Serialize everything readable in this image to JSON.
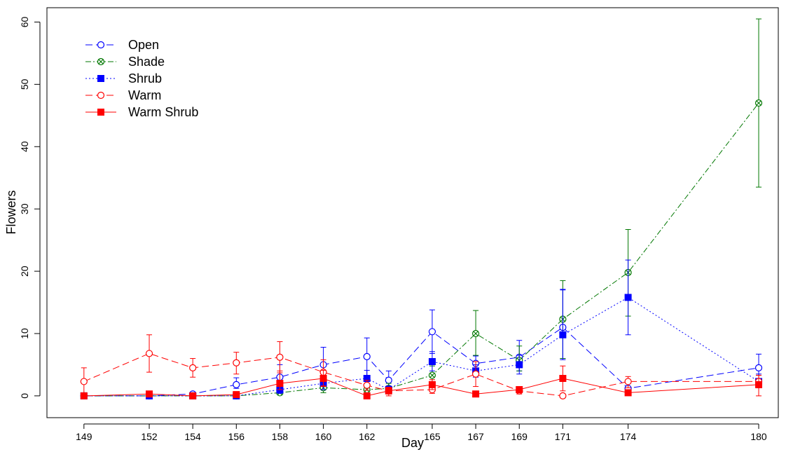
{
  "chart_data": {
    "type": "line",
    "xlabel": "Day",
    "ylabel": "Flowers",
    "x": [
      149,
      152,
      154,
      156,
      158,
      160,
      162,
      163,
      165,
      167,
      169,
      171,
      174,
      180
    ],
    "x_ticks": [
      149,
      152,
      154,
      156,
      158,
      160,
      162,
      165,
      167,
      169,
      171,
      174,
      180
    ],
    "y_ticks": [
      0,
      10,
      20,
      30,
      40,
      50,
      60
    ],
    "xlim": [
      147.3,
      180.9
    ],
    "ylim": [
      -3.5,
      62.3
    ],
    "grid": false,
    "legend_position": "top-left",
    "series": [
      {
        "name": "Open",
        "color": "#0000ff",
        "line_style": "dashed",
        "marker": "open-circle",
        "x": [
          149,
          152,
          154,
          156,
          158,
          160,
          162,
          163,
          165,
          167,
          169,
          171,
          174,
          180
        ],
        "values": [
          0,
          0,
          0.3,
          1.8,
          3.0,
          5.0,
          6.3,
          2.5,
          10.3,
          5.2,
          6.2,
          11.0,
          1.2,
          4.5
        ],
        "err_low": [
          0,
          0,
          0.3,
          0.6,
          1.5,
          2.8,
          3.0,
          1.3,
          3.5,
          1.2,
          2.2,
          5.0,
          0.6,
          2.0
        ],
        "err_high": [
          0,
          0,
          0.2,
          1.1,
          2.0,
          2.8,
          3.0,
          1.5,
          3.5,
          1.2,
          2.7,
          6.0,
          0.8,
          2.2
        ]
      },
      {
        "name": "Shade",
        "color": "#007700",
        "line_style": "dash-dot",
        "marker": "crossed-circle",
        "x": [
          149,
          152,
          154,
          156,
          158,
          160,
          162,
          163,
          165,
          167,
          169,
          171,
          174,
          180
        ],
        "values": [
          0,
          0,
          0,
          0,
          0.5,
          1.3,
          1.0,
          1.2,
          3.3,
          10.0,
          5.7,
          12.3,
          19.8,
          47.0
        ],
        "err_low": [
          0,
          0,
          0,
          0,
          0.3,
          0.8,
          0.6,
          0.6,
          1.3,
          3.5,
          1.7,
          6.3,
          7.0,
          13.5
        ],
        "err_high": [
          0,
          0,
          0,
          0,
          0.4,
          1.0,
          0.7,
          0.8,
          1.5,
          3.7,
          2.3,
          6.2,
          6.9,
          13.5
        ]
      },
      {
        "name": "Shrub",
        "color": "#0000ff",
        "line_style": "dotted",
        "marker": "filled-square",
        "x": [
          149,
          152,
          154,
          156,
          158,
          160,
          162,
          163,
          165,
          167,
          169,
          171,
          174,
          180
        ],
        "values": [
          0,
          0,
          0,
          0,
          1.0,
          2.0,
          2.8,
          1.0,
          5.5,
          4.0,
          5.0,
          9.8,
          15.8,
          2.3
        ],
        "err_low": [
          0,
          0,
          0,
          0,
          0.6,
          1.0,
          1.2,
          0.5,
          1.5,
          1.0,
          1.5,
          4.0,
          6.0,
          1.0
        ],
        "err_high": [
          0,
          0,
          0,
          0,
          0.8,
          1.2,
          1.3,
          0.6,
          1.6,
          1.0,
          1.5,
          7.3,
          6.0,
          1.2
        ]
      },
      {
        "name": "Warm",
        "color": "#ff0000",
        "line_style": "dashed",
        "marker": "open-circle",
        "x": [
          149,
          152,
          154,
          156,
          158,
          160,
          162,
          163,
          165,
          167,
          169,
          171,
          174,
          180
        ],
        "values": [
          2.3,
          6.8,
          4.5,
          5.3,
          6.2,
          3.8,
          1.7,
          0.8,
          1.0,
          3.5,
          0.8,
          0,
          2.3,
          2.3
        ],
        "err_low": [
          2.2,
          3.0,
          1.5,
          1.8,
          2.5,
          2.2,
          0.8,
          0.5,
          0.6,
          2.0,
          0.5,
          0,
          1.0,
          1.0
        ],
        "err_high": [
          2.2,
          3.0,
          1.5,
          1.7,
          2.5,
          2.0,
          0.8,
          0.5,
          0.7,
          2.0,
          0.5,
          0,
          0.8,
          1.0
        ]
      },
      {
        "name": "Warm Shrub",
        "color": "#ff0000",
        "line_style": "solid",
        "marker": "filled-square",
        "x": [
          149,
          152,
          154,
          156,
          158,
          160,
          162,
          163,
          165,
          167,
          169,
          171,
          174,
          180
        ],
        "values": [
          0,
          0.3,
          0,
          0.2,
          2.0,
          2.8,
          0,
          0.8,
          1.8,
          0.3,
          1.0,
          2.8,
          0.5,
          1.8
        ],
        "err_low": [
          0,
          0.2,
          0,
          0.1,
          1.0,
          1.3,
          0,
          0.8,
          0.8,
          0.2,
          0.5,
          2.0,
          0.3,
          1.8
        ],
        "err_high": [
          0,
          0.3,
          0,
          0.2,
          2.0,
          1.3,
          0,
          0.6,
          0.8,
          0.3,
          0.5,
          2.0,
          0.5,
          1.5
        ]
      }
    ]
  }
}
